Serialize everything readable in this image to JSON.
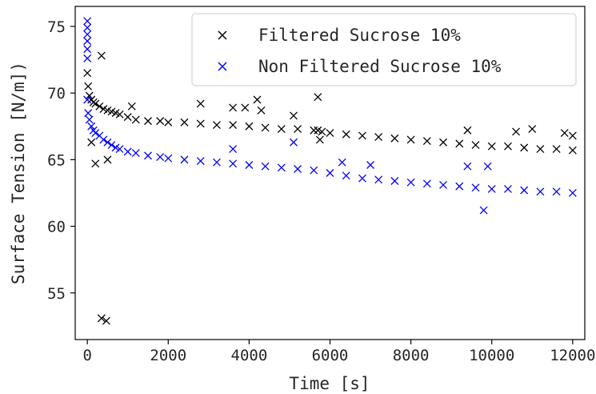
{
  "chart_data": {
    "type": "scatter",
    "xlabel": "Time [s]",
    "ylabel": "Surface Tension [N/m])",
    "xlim": [
      -300,
      12300
    ],
    "ylim": [
      51.5,
      76.5
    ],
    "xticks": [
      0,
      2000,
      4000,
      6000,
      8000,
      10000,
      12000
    ],
    "xtick_labels": [
      "0",
      "2000",
      "4000",
      "6000",
      "8000",
      "10000",
      "12000"
    ],
    "yticks": [
      55,
      60,
      65,
      70,
      75
    ],
    "ytick_labels": [
      "55",
      "60",
      "65",
      "70",
      "75"
    ],
    "grid": false,
    "legend_position": "top-right",
    "marker": "x",
    "series": [
      {
        "name": "Filtered Sucrose 10%",
        "color": "#000000",
        "x": [
          0,
          20,
          50,
          100,
          150,
          200,
          300,
          400,
          500,
          600,
          700,
          800,
          1000,
          1200,
          1500,
          1800,
          2000,
          2400,
          2800,
          3200,
          3600,
          4000,
          4400,
          4800,
          5200,
          5600,
          5700,
          5800,
          6000,
          6400,
          6800,
          7200,
          7600,
          8000,
          8400,
          8800,
          9200,
          9600,
          10000,
          10400,
          10800,
          11200,
          11600,
          12000,
          100,
          200,
          350,
          500,
          1100,
          2800,
          3600,
          3900,
          4200,
          4300,
          5100,
          5700,
          5750,
          9400,
          10600,
          11000,
          11800,
          12000,
          350,
          470
        ],
        "y": [
          71.5,
          70.5,
          69.8,
          69.5,
          69.3,
          69.2,
          69.0,
          68.8,
          68.7,
          68.6,
          68.5,
          68.4,
          68.2,
          68.0,
          67.9,
          67.9,
          67.8,
          67.8,
          67.7,
          67.6,
          67.6,
          67.5,
          67.4,
          67.3,
          67.3,
          67.2,
          67.2,
          67.1,
          67.0,
          66.9,
          66.8,
          66.7,
          66.6,
          66.5,
          66.4,
          66.3,
          66.2,
          66.1,
          66.0,
          66.0,
          65.9,
          65.8,
          65.8,
          65.7,
          66.3,
          64.7,
          72.8,
          65.0,
          69.0,
          69.2,
          68.9,
          68.9,
          69.5,
          68.7,
          68.3,
          69.7,
          66.5,
          67.2,
          67.1,
          67.3,
          67.0,
          66.8,
          53.1,
          52.9
        ]
      },
      {
        "name": "Non Filtered Sucrose 10%",
        "color": "#0000ff",
        "x": [
          0,
          20,
          50,
          100,
          150,
          200,
          300,
          400,
          500,
          600,
          700,
          800,
          1000,
          1200,
          1500,
          1800,
          2000,
          2400,
          2800,
          3200,
          3600,
          4000,
          4400,
          4800,
          5200,
          5600,
          6000,
          6400,
          6800,
          7200,
          7600,
          8000,
          8400,
          8800,
          9200,
          9600,
          10000,
          10400,
          10800,
          11200,
          11600,
          12000,
          0,
          0,
          0,
          0,
          0,
          0,
          3600,
          5100,
          6300,
          7000,
          9400,
          9800,
          9900
        ],
        "y": [
          69.5,
          68.5,
          68.0,
          67.5,
          67.2,
          67.0,
          66.8,
          66.5,
          66.3,
          66.1,
          65.9,
          65.8,
          65.6,
          65.5,
          65.3,
          65.2,
          65.1,
          65.0,
          64.9,
          64.8,
          64.7,
          64.6,
          64.5,
          64.4,
          64.3,
          64.2,
          64.0,
          63.8,
          63.6,
          63.5,
          63.4,
          63.3,
          63.2,
          63.1,
          63.0,
          62.9,
          62.8,
          62.8,
          62.7,
          62.6,
          62.6,
          62.5,
          75.4,
          74.9,
          74.4,
          73.9,
          73.3,
          72.6,
          65.8,
          66.3,
          64.8,
          64.6,
          64.5,
          61.2,
          64.5
        ]
      }
    ]
  }
}
